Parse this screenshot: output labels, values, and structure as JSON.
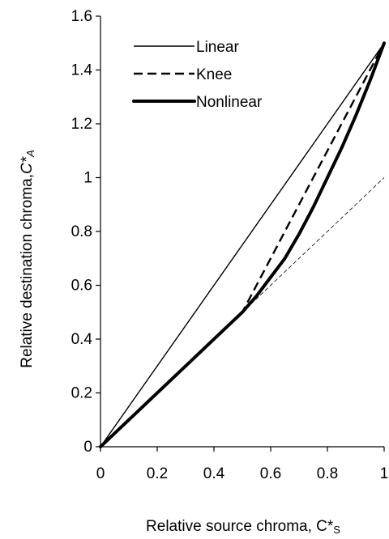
{
  "chart_data": {
    "type": "line",
    "xlabel": "Relative source chroma, C*S",
    "ylabel": "Relative destination chroma,C*A",
    "xlabel_parts": {
      "main": "Relative source chroma, C*",
      "sub": "S"
    },
    "ylabel_parts": {
      "main": "Relative destination chroma,",
      "var": "C*",
      "sub": "A"
    },
    "xlim": [
      0,
      1
    ],
    "ylim": [
      0,
      1.6
    ],
    "xticks": [
      0,
      0.2,
      0.4,
      0.6,
      0.8,
      1
    ],
    "xtick_labels": [
      "0",
      "0.2",
      "0.4",
      "0.6",
      "0.8",
      "1"
    ],
    "yticks": [
      0,
      0.2,
      0.4,
      0.6,
      0.8,
      1,
      1.2,
      1.4,
      1.6
    ],
    "ytick_labels": [
      "0",
      "0.2",
      "0.4",
      "0.6",
      "0.8",
      "1",
      "1.2",
      "1.4",
      "1.6"
    ],
    "grid": false,
    "legend_position": "top-left",
    "series": [
      {
        "name": "Linear",
        "style": "thin-solid",
        "x": [
          0,
          1
        ],
        "y": [
          0,
          1.5
        ]
      },
      {
        "name": "Knee",
        "style": "dashed",
        "x": [
          0,
          0.5,
          0.55,
          0.6,
          0.65,
          0.7,
          0.75,
          0.8,
          0.85,
          0.9,
          0.95,
          1
        ],
        "y": [
          0,
          0.5,
          0.6,
          0.7,
          0.8,
          0.9,
          1.0,
          1.1,
          1.2,
          1.3,
          1.4,
          1.5
        ]
      },
      {
        "name": "Nonlinear",
        "style": "thick-solid",
        "x": [
          0,
          0.5,
          0.55,
          0.6,
          0.65,
          0.7,
          0.75,
          0.8,
          0.85,
          0.9,
          0.95,
          1
        ],
        "y": [
          0,
          0.5,
          0.56,
          0.63,
          0.7,
          0.79,
          0.89,
          1.0,
          1.11,
          1.23,
          1.36,
          1.5
        ]
      },
      {
        "style": "thin-dashed-reference",
        "x": [
          0,
          1
        ],
        "y": [
          0,
          1
        ]
      }
    ]
  }
}
